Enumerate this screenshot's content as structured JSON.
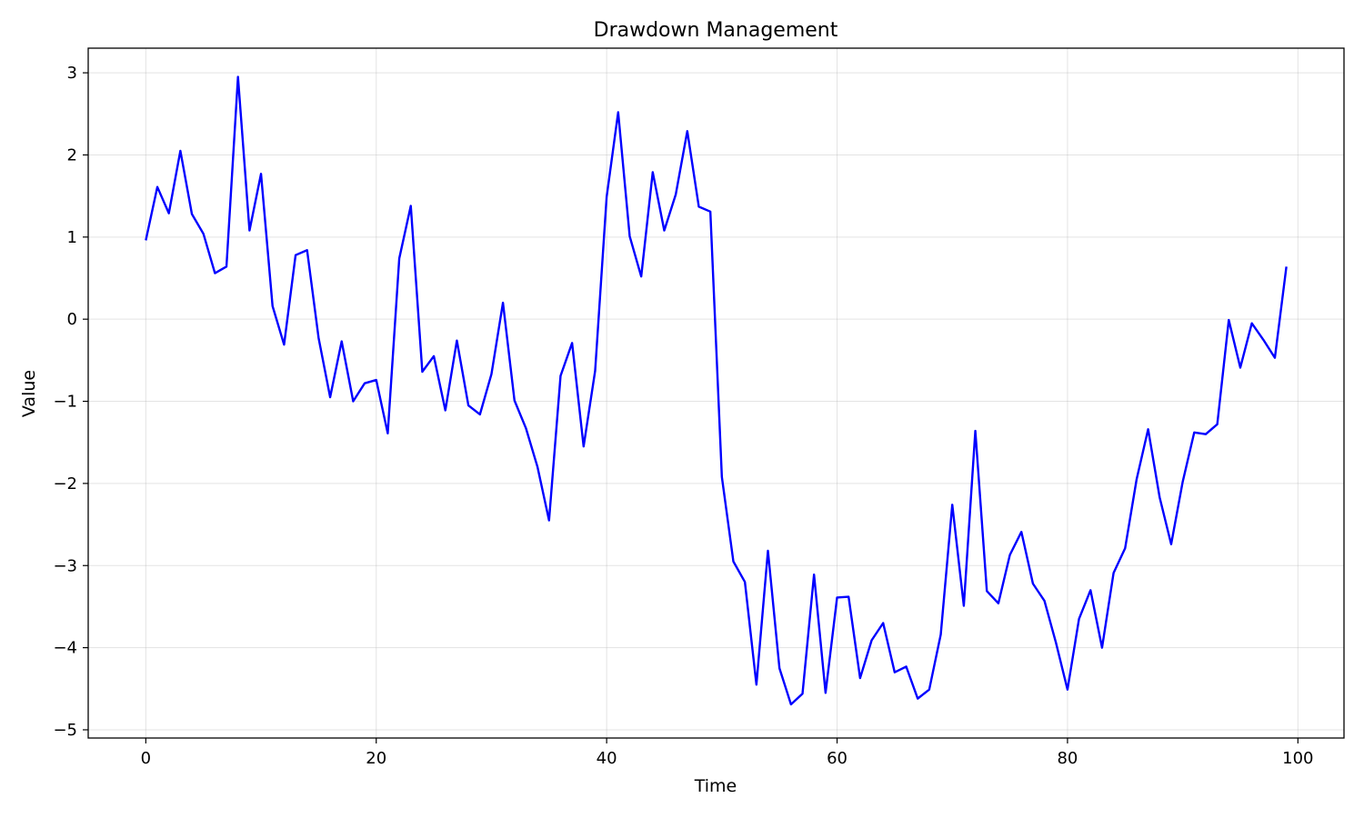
{
  "chart_data": {
    "type": "line",
    "title": "Drawdown Management",
    "xlabel": "Time",
    "ylabel": "Value",
    "xlim": [
      -5,
      104
    ],
    "ylim": [
      -5.1,
      3.3
    ],
    "xticks": [
      0,
      20,
      40,
      60,
      80,
      100
    ],
    "xtick_labels": [
      "0",
      "20",
      "40",
      "60",
      "80",
      "100"
    ],
    "yticks": [
      3,
      2,
      1,
      0,
      -1,
      -2,
      -3,
      -4,
      -5
    ],
    "ytick_labels": [
      "3",
      "2",
      "1",
      "0",
      "−1",
      "−2",
      "−3",
      "−4",
      "−5"
    ],
    "grid": true,
    "line_color": "#0000ff",
    "series": [
      {
        "x": [
          0,
          1,
          2,
          3,
          4,
          5,
          6,
          7,
          8,
          9,
          10,
          11,
          12,
          13,
          14,
          15,
          16,
          17,
          18,
          19,
          20,
          21,
          22,
          23,
          24,
          25,
          26,
          27,
          28,
          29,
          30,
          31,
          32,
          33,
          34,
          35,
          36,
          37,
          38,
          39,
          40,
          41,
          42,
          43,
          44,
          45,
          46,
          47,
          48,
          49,
          50,
          51,
          52,
          53,
          54,
          55,
          56,
          57,
          58,
          59,
          60,
          61,
          62,
          63,
          64,
          65,
          66,
          67,
          68,
          69,
          70,
          71,
          72,
          73,
          74,
          75,
          76,
          77,
          78,
          79,
          80,
          81,
          82,
          83,
          84,
          85,
          86,
          87,
          88,
          89,
          90,
          91,
          92,
          93,
          94,
          95,
          96,
          97,
          98,
          99
        ],
        "values": [
          0.96,
          1.61,
          1.29,
          2.05,
          1.28,
          1.04,
          0.56,
          0.64,
          2.95,
          1.08,
          1.77,
          0.16,
          -0.31,
          0.78,
          0.84,
          -0.23,
          -0.95,
          -0.27,
          -1.0,
          -0.78,
          -0.74,
          -1.39,
          0.74,
          1.38,
          -0.64,
          -0.45,
          -1.11,
          -0.26,
          -1.05,
          -1.16,
          -0.67,
          0.2,
          -0.99,
          -1.33,
          -1.8,
          -2.45,
          -0.69,
          -0.29,
          -1.55,
          -0.63,
          1.49,
          2.52,
          1.01,
          0.52,
          1.79,
          1.08,
          1.52,
          2.29,
          1.37,
          1.31,
          -1.92,
          -2.95,
          -3.2,
          -4.45,
          -2.82,
          -4.25,
          -4.69,
          -4.56,
          -3.11,
          -4.55,
          -3.39,
          -3.38,
          -4.37,
          -3.91,
          -3.7,
          -4.3,
          -4.23,
          -4.62,
          -4.51,
          -3.84,
          -2.26,
          -3.49,
          -1.36,
          -3.31,
          -3.46,
          -2.87,
          -2.59,
          -3.22,
          -3.43,
          -3.94,
          -4.51,
          -3.65,
          -3.3,
          -4.0,
          -3.09,
          -2.79,
          -1.95,
          -1.34,
          -2.17,
          -2.74,
          -1.98,
          -1.38,
          -1.4,
          -1.28,
          -0.01,
          -0.59,
          -0.05,
          -0.25,
          -0.47,
          0.64
        ]
      }
    ]
  }
}
